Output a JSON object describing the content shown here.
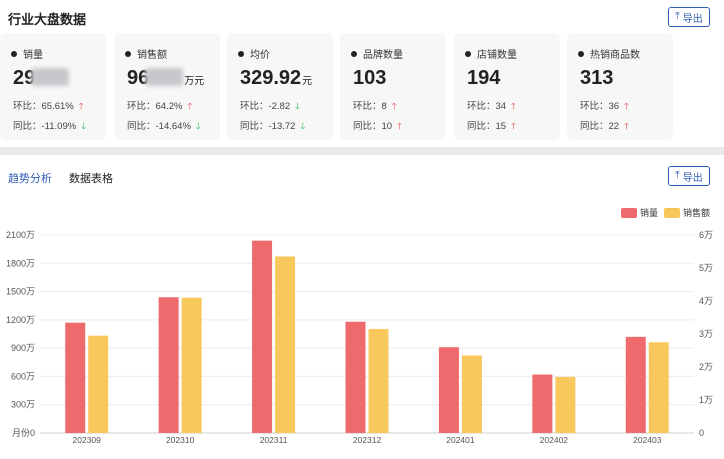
{
  "header": {
    "title": "行业大盘数据",
    "export_label": "导出"
  },
  "cards": [
    {
      "label": "销量",
      "value_prefix": "29",
      "unit": "",
      "blurred": true,
      "mom_label": "环比：",
      "mom": "65.61%",
      "mom_dir": "up",
      "yoy_label": "同比：",
      "yoy": "-11.09%",
      "yoy_dir": "down"
    },
    {
      "label": "销售额",
      "value_prefix": "96",
      "unit": "万元",
      "blurred": true,
      "mom_label": "环比：",
      "mom": "64.2%",
      "mom_dir": "up",
      "yoy_label": "同比：",
      "yoy": "-14.64%",
      "yoy_dir": "down"
    },
    {
      "label": "均价",
      "value_prefix": "329.92",
      "unit": "元",
      "blurred": false,
      "mom_label": "环比：",
      "mom": "-2.82",
      "mom_dir": "down",
      "yoy_label": "同比：",
      "yoy": "-13.72",
      "yoy_dir": "down"
    },
    {
      "label": "品牌数量",
      "value_prefix": "103",
      "unit": "",
      "blurred": false,
      "mom_label": "环比：",
      "mom": "8",
      "mom_dir": "up",
      "yoy_label": "同比：",
      "yoy": "10",
      "yoy_dir": "up"
    },
    {
      "label": "店铺数量",
      "value_prefix": "194",
      "unit": "",
      "blurred": false,
      "mom_label": "环比：",
      "mom": "34",
      "mom_dir": "up",
      "yoy_label": "同比：",
      "yoy": "15",
      "yoy_dir": "up"
    },
    {
      "label": "热销商品数",
      "value_prefix": "313",
      "unit": "",
      "blurred": false,
      "mom_label": "环比：",
      "mom": "36",
      "mom_dir": "up",
      "yoy_label": "同比：",
      "yoy": "22",
      "yoy_dir": "up"
    }
  ],
  "trend": {
    "tabs": [
      "趋势分析",
      "数据表格"
    ],
    "active_tab": 0,
    "export_label": "导出"
  },
  "colors": {
    "accent": "#2f5fb5",
    "up": "#e6484f",
    "down": "#2bb55a",
    "series_qty": "#ee6a6c",
    "series_amt": "#f9c85c"
  },
  "chart_data": {
    "type": "bar",
    "categories": [
      "202309",
      "202310",
      "202311",
      "202312",
      "202401",
      "202402",
      "202403"
    ],
    "series": [
      {
        "name": "销量",
        "axis": "left",
        "values": [
          1170,
          1440,
          2040,
          1180,
          910,
          620,
          1020
        ]
      },
      {
        "name": "销售额",
        "axis": "right",
        "values": [
          2.95,
          4.1,
          5.35,
          3.15,
          2.35,
          1.7,
          2.75
        ]
      }
    ],
    "y_left": {
      "ticks": [
        "0",
        "300万",
        "600万",
        "900万",
        "1200万",
        "1500万",
        "1800万",
        "2100万"
      ],
      "max": 2100,
      "unit_label": "月份"
    },
    "y_right": {
      "ticks": [
        "0",
        "1万",
        "2万",
        "3万",
        "4万",
        "5万",
        "6万"
      ],
      "max": 6
    },
    "legend": [
      "销量",
      "销售额"
    ],
    "legend_position": "top-right",
    "grid": true
  }
}
